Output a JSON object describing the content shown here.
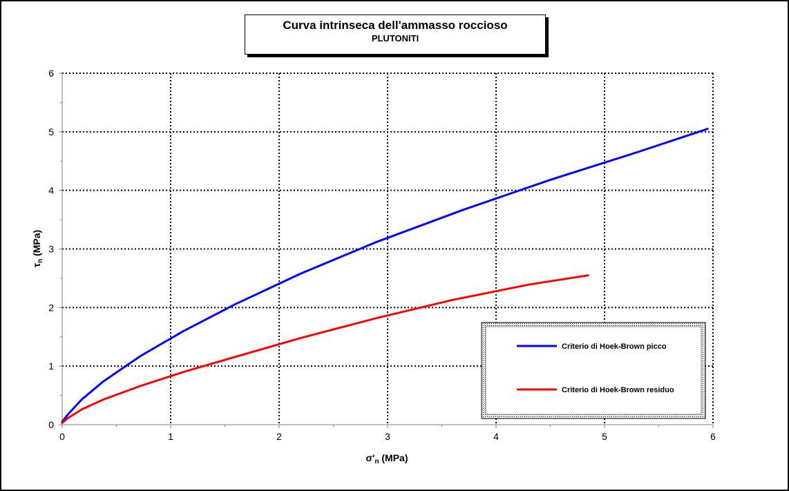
{
  "chart_data": {
    "type": "line",
    "title": "Curva intrinseca dell'ammasso roccioso",
    "subtitle": "PLUTONITI",
    "xlabel": {
      "main": "σ'",
      "sub": "n",
      "unit": " (MPa)"
    },
    "ylabel": {
      "main": "τ",
      "sub": "n",
      "unit": " (MPa)"
    },
    "xlim": [
      0,
      6
    ],
    "ylim": [
      0,
      6
    ],
    "xticks": [
      0,
      1,
      2,
      3,
      4,
      5,
      6
    ],
    "yticks": [
      0,
      1,
      2,
      3,
      4,
      5,
      6
    ],
    "grid": true,
    "legend_position": "bottom-right",
    "series": [
      {
        "name": "Criterio di Hoek-Brown picco",
        "color": "#0000ff",
        "x": [
          0,
          0.05,
          0.18,
          0.38,
          0.72,
          1.12,
          1.6,
          2.2,
          2.9,
          3.7,
          4.5,
          5.3,
          5.95
        ],
        "y": [
          0.05,
          0.17,
          0.43,
          0.74,
          1.17,
          1.6,
          2.06,
          2.58,
          3.12,
          3.67,
          4.18,
          4.65,
          5.05
        ]
      },
      {
        "name": "Criterio di Hoek-Brown residuo",
        "color": "#ff0000",
        "x": [
          0,
          0.05,
          0.18,
          0.38,
          0.72,
          1.12,
          1.6,
          2.2,
          2.9,
          3.6,
          4.3,
          4.85
        ],
        "y": [
          0.03,
          0.11,
          0.26,
          0.43,
          0.66,
          0.9,
          1.16,
          1.48,
          1.82,
          2.13,
          2.39,
          2.55
        ]
      }
    ]
  }
}
